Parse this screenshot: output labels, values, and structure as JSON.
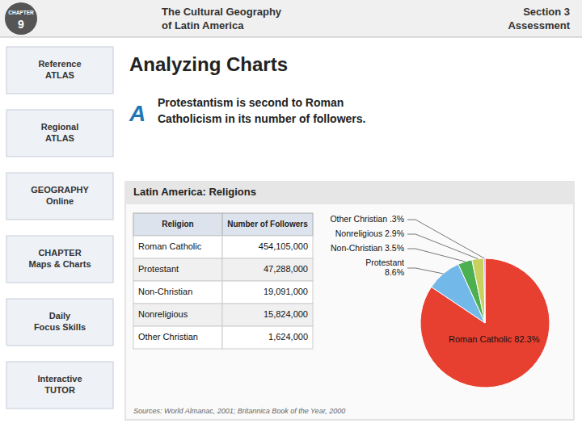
{
  "page": {
    "header_title": [
      "The Cultural Geography",
      "of Latin America"
    ],
    "header_section": [
      "Section 3",
      "Assessment"
    ],
    "chapter_label": "CHAPTER",
    "chapter_num": "9",
    "title": "Analyzing Charts",
    "answer_letter": "A",
    "answer_lines": [
      "Protestantism is second to Roman",
      "Catholicism in its number of followers."
    ],
    "sidebar": [
      "Reference\nATLAS",
      "Regional\nATLAS",
      "GEOGRAPHY\nOnline",
      "CHAPTER\nMaps & Charts",
      "Daily\nFocus Skills",
      "Interactive\nTUTOR"
    ]
  },
  "chart_data": {
    "type": "pie",
    "title": "Latin America: Religions",
    "values": [
      454105000,
      47288000,
      19091000,
      15824000,
      1624000
    ],
    "value_labels": [
      "Roman Catholic 82.3%",
      "Protestant\n8.6%",
      "Non-Christian 3.5%",
      "Nonreligious 2.9%",
      "Other Christian .3%"
    ],
    "colors": [
      "#E84030",
      "#72B8E8",
      "#4CAF50",
      "#C8D060",
      "#C060C0"
    ],
    "table": {
      "headers": [
        "Religion",
        "Number of Followers"
      ],
      "rows": [
        [
          "Roman Catholic",
          "454,105,000"
        ],
        [
          "Protestant",
          "47,288,000"
        ],
        [
          "Non-Christian",
          "19,091,000"
        ],
        [
          "Nonreligious",
          "15,824,000"
        ],
        [
          "Other Christian",
          "1,624,000"
        ]
      ]
    },
    "source": "Sources: World Almanac, 2001; Britannica Book of the Year, 2000"
  }
}
